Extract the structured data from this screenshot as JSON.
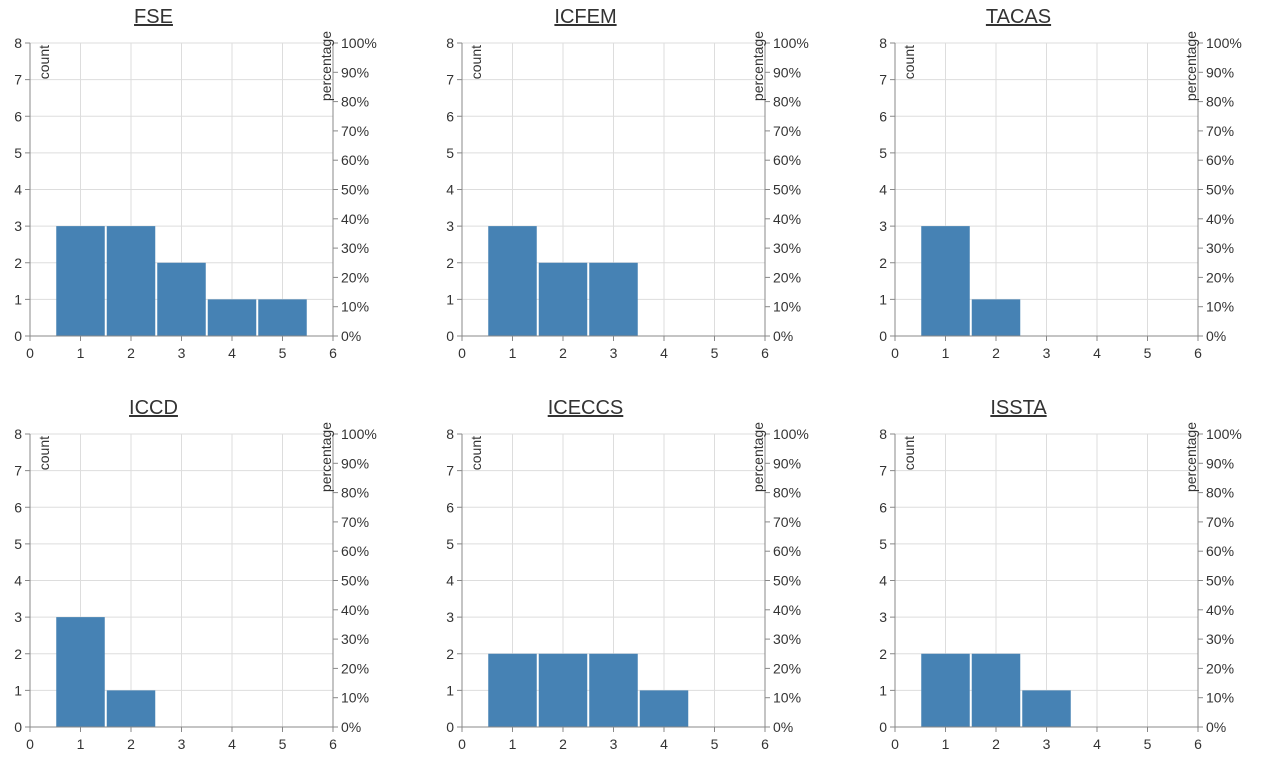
{
  "chart_data": [
    {
      "type": "bar",
      "title": "FSE",
      "x": [
        1,
        2,
        3,
        4,
        5
      ],
      "values": [
        3,
        3,
        2,
        1,
        1
      ],
      "ylabel": "count",
      "y2label": "percentage",
      "xlim": [
        0,
        6
      ],
      "ylim": [
        0,
        8
      ],
      "y2lim": [
        0,
        100
      ],
      "grid": true
    },
    {
      "type": "bar",
      "title": "ICFEM",
      "x": [
        1,
        2,
        3
      ],
      "values": [
        3,
        2,
        2
      ],
      "ylabel": "count",
      "y2label": "percentage",
      "xlim": [
        0,
        6
      ],
      "ylim": [
        0,
        8
      ],
      "y2lim": [
        0,
        100
      ],
      "grid": true
    },
    {
      "type": "bar",
      "title": "TACAS",
      "x": [
        1,
        2
      ],
      "values": [
        3,
        1
      ],
      "ylabel": "count",
      "y2label": "percentage",
      "xlim": [
        0,
        6
      ],
      "ylim": [
        0,
        8
      ],
      "y2lim": [
        0,
        100
      ],
      "grid": true
    },
    {
      "type": "bar",
      "title": "ICCD",
      "x": [
        1,
        2
      ],
      "values": [
        3,
        1
      ],
      "ylabel": "count",
      "y2label": "percentage",
      "xlim": [
        0,
        6
      ],
      "ylim": [
        0,
        8
      ],
      "y2lim": [
        0,
        100
      ],
      "grid": true
    },
    {
      "type": "bar",
      "title": "ICECCS",
      "x": [
        1,
        2,
        3,
        4
      ],
      "values": [
        2,
        2,
        2,
        1
      ],
      "ylabel": "count",
      "y2label": "percentage",
      "xlim": [
        0,
        6
      ],
      "ylim": [
        0,
        8
      ],
      "y2lim": [
        0,
        100
      ],
      "grid": true
    },
    {
      "type": "bar",
      "title": "ISSTA",
      "x": [
        1,
        2,
        3
      ],
      "values": [
        2,
        2,
        1
      ],
      "ylabel": "count",
      "y2label": "percentage",
      "xlim": [
        0,
        6
      ],
      "ylim": [
        0,
        8
      ],
      "y2lim": [
        0,
        100
      ],
      "grid": true
    }
  ],
  "x_ticks": [
    "0",
    "1",
    "2",
    "3",
    "4",
    "5",
    "6"
  ],
  "y_ticks": [
    "0",
    "1",
    "2",
    "3",
    "4",
    "5",
    "6",
    "7",
    "8"
  ],
  "y2_ticks": [
    "0%",
    "10%",
    "20%",
    "30%",
    "40%",
    "50%",
    "60%",
    "70%",
    "80%",
    "90%",
    "100%"
  ],
  "colors": {
    "bar": "#4682b4",
    "grid": "#dddddd",
    "axis": "#888888"
  }
}
